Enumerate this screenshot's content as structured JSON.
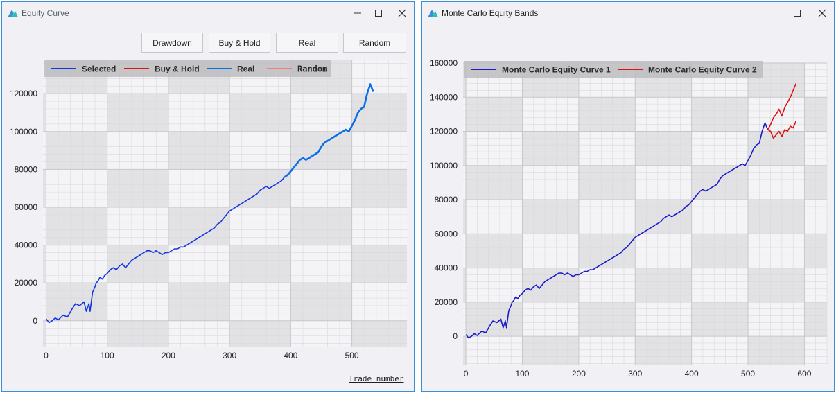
{
  "windows": {
    "left": {
      "title": "Equity Curve",
      "buttons": [
        "Drawdown",
        "Buy & Hold",
        "Real",
        "Random"
      ],
      "xaxis_title": "Trade number"
    },
    "right": {
      "title": "Monte Carlo Equity Bands"
    }
  },
  "colors": {
    "window_border": "#3a8fd6",
    "selected": "#1436e0",
    "buy_hold": "#e01414",
    "real": "#0a6ee8",
    "random": "#f08080",
    "mc1": "#1a1acc",
    "mc2": "#e01010"
  },
  "chart_data": [
    {
      "type": "line",
      "title": "",
      "xlabel": "Trade number",
      "ylabel": "",
      "xlim": [
        -5,
        590
      ],
      "ylim": [
        -14000,
        138000
      ],
      "xticks": [
        0,
        100,
        200,
        300,
        400,
        500
      ],
      "yticks": [
        0,
        20000,
        40000,
        60000,
        80000,
        100000,
        120000
      ],
      "grid": true,
      "legend_position": "top-left",
      "series": [
        {
          "name": "Selected",
          "color": "#1436e0",
          "x": [
            0,
            5,
            10,
            15,
            20,
            28,
            35,
            42,
            48,
            55,
            62,
            66,
            70,
            72,
            76,
            80,
            82,
            85,
            88,
            92,
            96,
            100,
            105,
            110,
            115,
            120,
            125,
            130,
            135,
            140,
            145,
            150,
            155,
            160,
            165,
            170,
            175,
            180,
            185,
            190,
            195,
            200,
            205,
            210,
            215,
            220,
            225,
            230,
            235,
            240,
            245,
            250,
            255,
            260,
            265,
            270,
            275,
            280,
            285,
            290,
            295,
            300,
            305,
            310,
            315,
            320,
            325,
            330,
            335,
            340,
            345,
            350,
            355,
            360,
            365,
            370,
            375,
            380,
            385,
            390
          ],
          "y": [
            1000,
            -1000,
            0,
            1500,
            500,
            3000,
            2000,
            6000,
            9000,
            8000,
            10000,
            5000,
            9000,
            5000,
            15000,
            18000,
            20000,
            21000,
            23000,
            22000,
            24000,
            25000,
            27000,
            28000,
            27000,
            29000,
            30000,
            28000,
            30000,
            32000,
            33000,
            34000,
            35000,
            36000,
            37000,
            37000,
            36000,
            37000,
            36000,
            35000,
            36000,
            36000,
            37000,
            38000,
            38000,
            39000,
            39000,
            40000,
            41000,
            42000,
            43000,
            44000,
            45000,
            46000,
            47000,
            48000,
            49000,
            51000,
            52000,
            54000,
            56000,
            58000,
            59000,
            60000,
            61000,
            62000,
            63000,
            64000,
            65000,
            66000,
            67000,
            69000,
            70000,
            71000,
            70000,
            71000,
            72000,
            73000,
            74000,
            76000
          ]
        },
        {
          "name": "Buy & Hold",
          "color": "#e01414",
          "x": [],
          "y": []
        },
        {
          "name": "Real",
          "color": "#0a6ee8",
          "x": [
            390,
            395,
            400,
            405,
            410,
            415,
            420,
            425,
            430,
            435,
            440,
            445,
            450,
            455,
            460,
            465,
            470,
            475,
            480,
            485,
            490,
            495,
            500,
            505,
            510,
            515,
            520,
            525,
            530,
            535
          ],
          "y": [
            76000,
            77000,
            79000,
            81000,
            83000,
            85000,
            86000,
            85000,
            86000,
            87000,
            88000,
            89000,
            92000,
            94000,
            95000,
            96000,
            97000,
            98000,
            99000,
            100000,
            101000,
            100000,
            103000,
            106000,
            110000,
            112000,
            113000,
            120000,
            125000,
            121000
          ]
        },
        {
          "name": "Random",
          "color": "#f08080",
          "x": [],
          "y": []
        }
      ]
    },
    {
      "type": "line",
      "title": "",
      "xlabel": "",
      "ylabel": "",
      "xlim": [
        -5,
        640
      ],
      "ylim": [
        -17000,
        160000
      ],
      "xticks": [
        0,
        100,
        200,
        300,
        400,
        500,
        600
      ],
      "yticks": [
        0,
        20000,
        40000,
        60000,
        80000,
        100000,
        120000,
        140000,
        160000
      ],
      "grid": true,
      "legend_position": "top-left",
      "series": [
        {
          "name": "Monte Carlo Equity Curve 1",
          "color": "#1a1acc",
          "x": [
            0,
            5,
            10,
            15,
            20,
            28,
            35,
            42,
            48,
            55,
            62,
            66,
            70,
            72,
            76,
            80,
            82,
            85,
            88,
            92,
            96,
            100,
            105,
            110,
            115,
            120,
            125,
            130,
            135,
            140,
            145,
            150,
            155,
            160,
            165,
            170,
            175,
            180,
            185,
            190,
            195,
            200,
            205,
            210,
            215,
            220,
            225,
            230,
            235,
            240,
            245,
            250,
            255,
            260,
            265,
            270,
            275,
            280,
            285,
            290,
            295,
            300,
            305,
            310,
            315,
            320,
            325,
            330,
            335,
            340,
            345,
            350,
            355,
            360,
            365,
            370,
            375,
            380,
            385,
            390,
            395,
            400,
            405,
            410,
            415,
            420,
            425,
            430,
            435,
            440,
            445,
            450,
            455,
            460,
            465,
            470,
            475,
            480,
            485,
            490,
            495,
            500,
            505,
            510,
            515,
            520,
            525,
            530,
            535
          ],
          "y": [
            1000,
            -1000,
            0,
            1500,
            500,
            3000,
            2000,
            6000,
            9000,
            8000,
            10000,
            5000,
            9000,
            5000,
            15000,
            18000,
            20000,
            21000,
            23000,
            22000,
            24000,
            25000,
            27000,
            28000,
            27000,
            29000,
            30000,
            28000,
            30000,
            32000,
            33000,
            34000,
            35000,
            36000,
            37000,
            37000,
            36000,
            37000,
            36000,
            35000,
            36000,
            36000,
            37000,
            38000,
            38000,
            39000,
            39000,
            40000,
            41000,
            42000,
            43000,
            44000,
            45000,
            46000,
            47000,
            48000,
            49000,
            51000,
            52000,
            54000,
            56000,
            58000,
            59000,
            60000,
            61000,
            62000,
            63000,
            64000,
            65000,
            66000,
            67000,
            69000,
            70000,
            71000,
            70000,
            71000,
            72000,
            73000,
            74000,
            76000,
            77000,
            79000,
            81000,
            83000,
            85000,
            86000,
            85000,
            86000,
            87000,
            88000,
            89000,
            92000,
            94000,
            95000,
            96000,
            97000,
            98000,
            99000,
            100000,
            101000,
            100000,
            103000,
            106000,
            110000,
            112000,
            113000,
            120000,
            125000,
            121000
          ]
        },
        {
          "name": "Monte Carlo Equity Curve 2",
          "color": "#e01010",
          "x": [
            535,
            540,
            545,
            550,
            555,
            560,
            565,
            570,
            575,
            580,
            585,
            535,
            540,
            545,
            550,
            555,
            560,
            565,
            570,
            575,
            580,
            585
          ],
          "y": [
            121000,
            124000,
            128000,
            130000,
            133000,
            129000,
            134000,
            137000,
            140000,
            144000,
            148000,
            121000,
            120000,
            116000,
            118000,
            120000,
            117000,
            121000,
            120000,
            123000,
            122000,
            126000
          ]
        }
      ]
    }
  ]
}
